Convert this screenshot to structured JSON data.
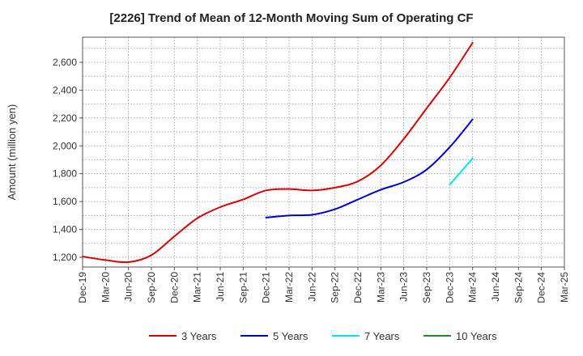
{
  "chart_data": {
    "type": "line",
    "title": "[2226]  Trend of Mean of 12-Month Moving Sum of Operating CF",
    "xlabel": "",
    "ylabel": "Amount (million yen)",
    "ylim": [
      1130,
      2780
    ],
    "yticks": [
      1200,
      1400,
      1600,
      1800,
      2000,
      2200,
      2400,
      2600
    ],
    "ytick_labels": [
      "1,200",
      "1,400",
      "1,600",
      "1,800",
      "2,000",
      "2,200",
      "2,400",
      "2,600"
    ],
    "categories": [
      "Dec-19",
      "Mar-20",
      "Jun-20",
      "Sep-20",
      "Dec-20",
      "Mar-21",
      "Jun-21",
      "Sep-21",
      "Dec-21",
      "Mar-22",
      "Jun-22",
      "Sep-22",
      "Dec-22",
      "Mar-23",
      "Jun-23",
      "Sep-23",
      "Dec-23",
      "Mar-24",
      "Jun-24",
      "Sep-24",
      "Dec-24",
      "Mar-25"
    ],
    "grid": true,
    "legend_position": "bottom",
    "series": [
      {
        "name": "3 Years",
        "color": "#dd0000",
        "values": [
          1205,
          1180,
          1165,
          1215,
          1350,
          1480,
          1560,
          1615,
          1680,
          1690,
          1680,
          1700,
          1745,
          1860,
          2050,
          2270,
          2490,
          2740,
          null,
          null,
          null,
          null
        ]
      },
      {
        "name": "5 Years",
        "color": "#0000cc",
        "values": [
          null,
          null,
          null,
          null,
          null,
          null,
          null,
          null,
          1485,
          1500,
          1505,
          1545,
          1615,
          1685,
          1740,
          1830,
          1990,
          2190,
          null,
          null,
          null,
          null
        ]
      },
      {
        "name": "7 Years",
        "color": "#00e5e5",
        "values": [
          null,
          null,
          null,
          null,
          null,
          null,
          null,
          null,
          null,
          null,
          null,
          null,
          null,
          null,
          null,
          null,
          1720,
          1910,
          null,
          null,
          null,
          null
        ]
      },
      {
        "name": "10 Years",
        "color": "#228822",
        "values": [
          null,
          null,
          null,
          null,
          null,
          null,
          null,
          null,
          null,
          null,
          null,
          null,
          null,
          null,
          null,
          null,
          null,
          null,
          null,
          null,
          null,
          null
        ]
      }
    ]
  }
}
